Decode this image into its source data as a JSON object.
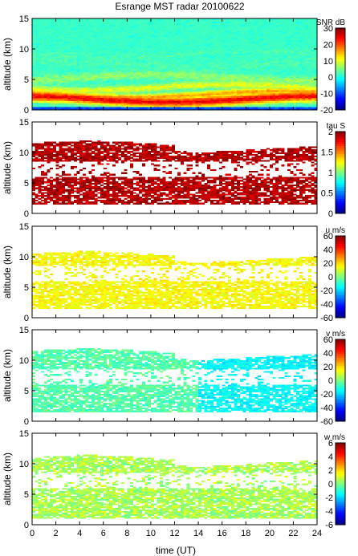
{
  "chart_data": {
    "type": "heatmap",
    "title": "Esrange MST radar 20100622",
    "xlabel": "time (UT)",
    "xlim": [
      0,
      24
    ],
    "xticks": [
      "0",
      "2",
      "4",
      "6",
      "8",
      "10",
      "12",
      "14",
      "16",
      "18",
      "20",
      "22",
      "24"
    ],
    "panels": [
      {
        "id": "snr",
        "ylabel": "altitude (km)",
        "ylim": [
          0,
          15
        ],
        "yticks": [
          "0",
          "5",
          "10",
          "15"
        ],
        "colorbar_label": "SNR dB",
        "colorbar_range": [
          -20,
          30
        ],
        "colorbar_ticks": [
          "30",
          "20",
          "10",
          "0",
          "-10",
          "-20"
        ],
        "bands": [
          {
            "alt": 1.8,
            "value": 24,
            "width": 0.9
          },
          {
            "alt": 2.6,
            "value": 16,
            "width": 0.6
          },
          {
            "alt": 3.7,
            "value": 10,
            "width": 0.7
          },
          {
            "alt": 5.3,
            "value": 6,
            "width": 0.8
          },
          {
            "alt": 7.6,
            "value": 2,
            "width": 1.0
          },
          {
            "alt": 9.2,
            "value": 2,
            "width": 0.5
          }
        ],
        "background_value": -8
      },
      {
        "id": "tau",
        "ylabel": "altitude (km)",
        "ylim": [
          0,
          15
        ],
        "yticks": [
          "0",
          "5",
          "10",
          "15"
        ],
        "colorbar_label": "tau S",
        "colorbar_range": [
          0,
          2
        ],
        "colorbar_ticks": [
          "2",
          "1.5",
          "1",
          "0.5",
          "0"
        ],
        "coverage": {
          "alt_min": 1.5,
          "alt_max": 11.5
        },
        "typical_value": 2
      },
      {
        "id": "u",
        "ylabel": "altitude (km)",
        "ylim": [
          0,
          15
        ],
        "yticks": [
          "0",
          "5",
          "10",
          "15"
        ],
        "colorbar_label": "u m/s",
        "colorbar_range": [
          -60,
          60
        ],
        "colorbar_ticks": [
          "60",
          "40",
          "20",
          "0",
          "-20",
          "-40",
          "-60"
        ],
        "coverage": {
          "alt_min": 1.5,
          "alt_max": 10.5
        },
        "typical_value": 15
      },
      {
        "id": "v",
        "ylabel": "altitude (km)",
        "ylim": [
          0,
          15
        ],
        "yticks": [
          "0",
          "5",
          "10",
          "15"
        ],
        "colorbar_label": "v m/s",
        "colorbar_range": [
          -60,
          60
        ],
        "colorbar_ticks": [
          "60",
          "40",
          "20",
          "0",
          "-20",
          "-40",
          "-60"
        ],
        "coverage": {
          "alt_min": 1.5,
          "alt_max": 11.5
        },
        "typical_value": -5,
        "late_value": -15
      },
      {
        "id": "w",
        "ylabel": "altitude (km)",
        "ylim": [
          0,
          15
        ],
        "yticks": [
          "0",
          "5",
          "10",
          "15"
        ],
        "colorbar_label": "w m/s",
        "colorbar_range": [
          -6,
          6
        ],
        "colorbar_ticks": [
          "6",
          "4",
          "2",
          "0",
          "-2",
          "-4",
          "-6"
        ],
        "coverage": {
          "alt_min": 1.0,
          "alt_max": 11.0
        },
        "typical_value": 0.5
      }
    ]
  }
}
